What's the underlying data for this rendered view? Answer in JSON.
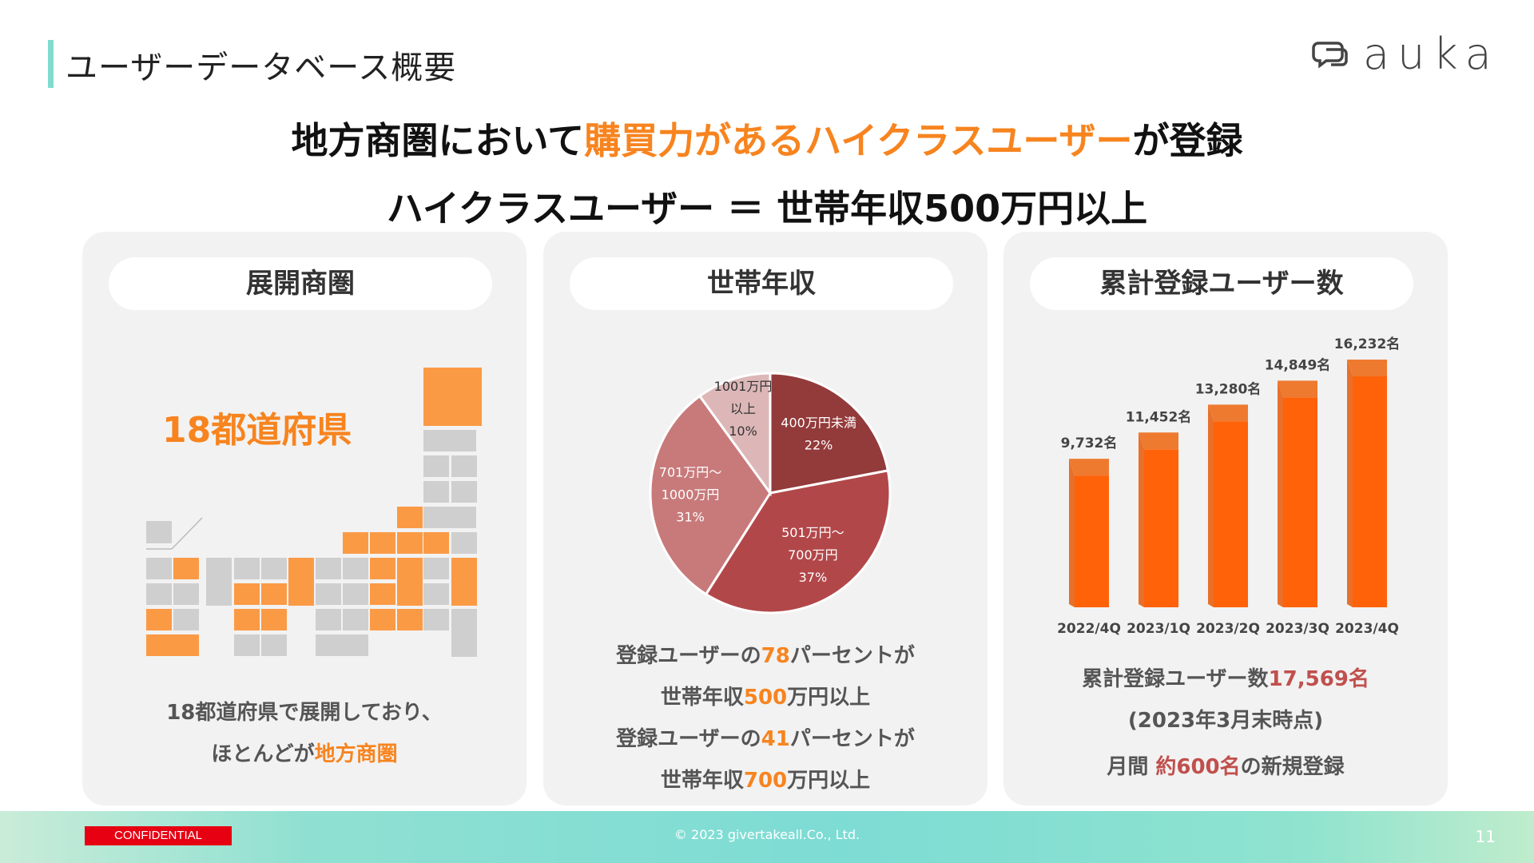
{
  "header": {
    "title": "ユーザーデータベース概要",
    "logo_text": "auka"
  },
  "headline": {
    "line1_pre": "地方商圏において",
    "line1_highlight": "購買力があるハイクラスユーザー",
    "line1_post": "が登録",
    "line2": "ハイクラスユーザー ＝ 世帯年収500万円以上"
  },
  "panel_area": {
    "title": "展開商圏",
    "count_label": "18都道府県",
    "desc_line1": "18都道府県で展開しており、",
    "desc_line2_pre": "ほとんどが",
    "desc_line2_highlight": "地方商圏"
  },
  "panel_income": {
    "title": "世帯年収",
    "desc1_pre": "登録ユーザーの",
    "desc1_num": "78",
    "desc1_post": "パーセントが",
    "desc2_pre": "世帯年収",
    "desc2_num": "500",
    "desc2_post": "万円以上",
    "desc3_pre": "登録ユーザーの",
    "desc3_num": "41",
    "desc3_post": "パーセントが",
    "desc4_pre": "世帯年収",
    "desc4_num": "700",
    "desc4_post": "万円以上"
  },
  "panel_users": {
    "title": "累計登録ユーザー数",
    "total_pre": "累計登録ユーザー数",
    "total_value": "17,569名",
    "as_of": "(2023年3月末時点)",
    "monthly_pre": "月間 ",
    "monthly_value": "約600名",
    "monthly_post": "の新規登録"
  },
  "footer": {
    "confidential": "CONFIDENTIAL",
    "copyright": "© 2023 givertakeall.Co., Ltd.",
    "page_number": "11"
  },
  "colors": {
    "accent": "#7fdccf",
    "orange": "#f7841f",
    "bar": "#ff6208",
    "pie": [
      "#933a3a",
      "#b2474a",
      "#c87a7b",
      "#ddb7b8"
    ]
  },
  "chart_data": [
    {
      "type": "pie",
      "title": "世帯年収",
      "slices": [
        {
          "label_lines": [
            "400万円未満"
          ],
          "pct_label": "22%",
          "value": 22
        },
        {
          "label_lines": [
            "501万円～",
            "700万円"
          ],
          "pct_label": "37%",
          "value": 37
        },
        {
          "label_lines": [
            "701万円～",
            "1000万円"
          ],
          "pct_label": "31%",
          "value": 31
        },
        {
          "label_lines": [
            "1001万円",
            "以上"
          ],
          "pct_label": "10%",
          "value": 10
        }
      ]
    },
    {
      "type": "bar",
      "title": "累計登録ユーザー数",
      "categories": [
        "2022/4Q",
        "2023/1Q",
        "2023/2Q",
        "2023/3Q",
        "2023/4Q"
      ],
      "values": [
        9732,
        11452,
        13280,
        14849,
        16232
      ],
      "value_labels": [
        "9,732名",
        "11,452名",
        "13,280名",
        "14,849名",
        "16,232名"
      ],
      "ylim": [
        0,
        16232
      ]
    }
  ]
}
